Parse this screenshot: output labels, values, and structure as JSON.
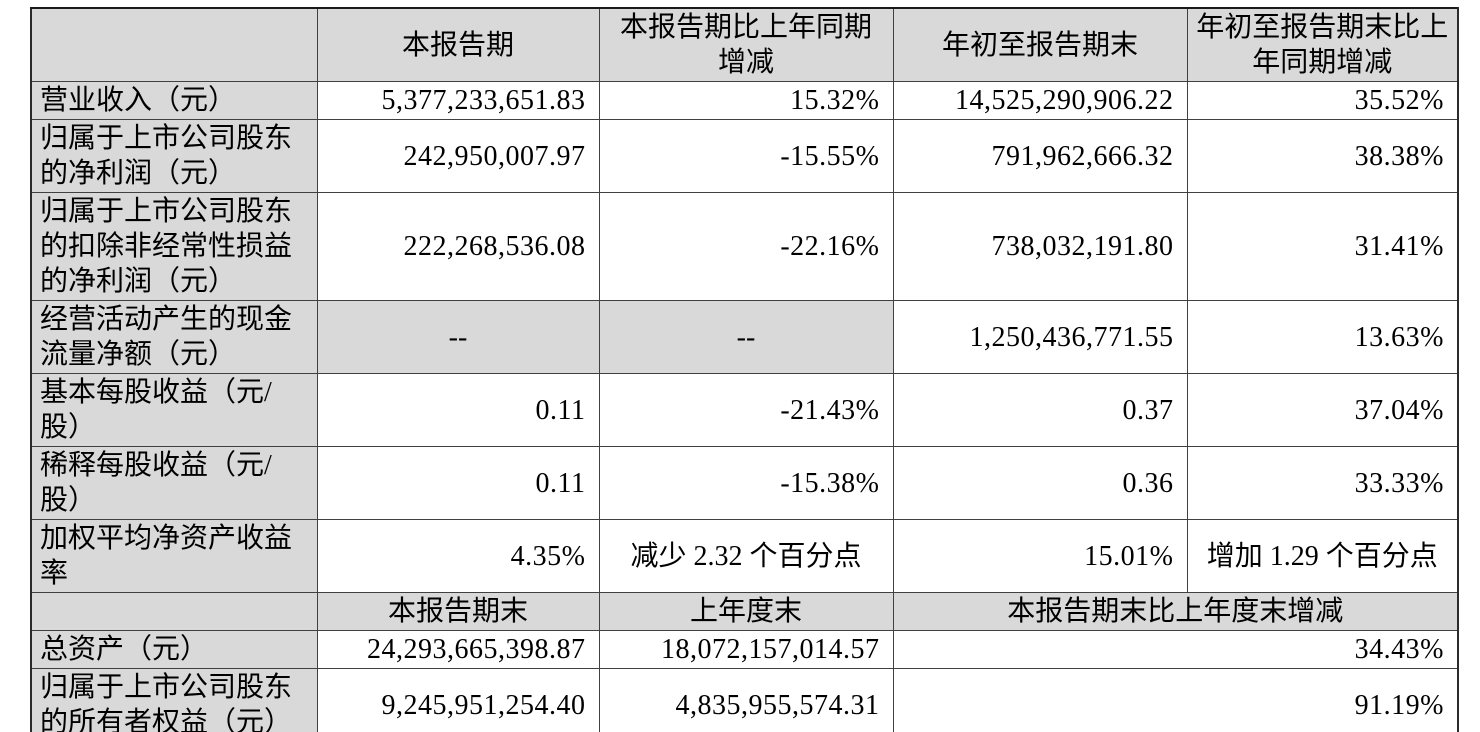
{
  "table": {
    "section1": {
      "header": [
        "",
        "本报告期",
        "本报告期比上年同期增减",
        "年初至报告期末",
        "年初至报告期末比上年同期增减"
      ],
      "rows": [
        {
          "label": "营业收入（元）",
          "cells": [
            "5,377,233,651.83",
            "15.32%",
            "14,525,290,906.22",
            "35.52%"
          ]
        },
        {
          "label": "归属于上市公司股东的净利润（元）",
          "cells": [
            "242,950,007.97",
            "-15.55%",
            "791,962,666.32",
            "38.38%"
          ]
        },
        {
          "label": "归属于上市公司股东的扣除非经常性损益的净利润（元）",
          "cells": [
            "222,268,536.08",
            "-22.16%",
            "738,032,191.80",
            "31.41%"
          ]
        },
        {
          "label": "经营活动产生的现金流量净额（元）",
          "cells": [
            "--",
            "--",
            "1,250,436,771.55",
            "13.63%"
          ]
        },
        {
          "label": "基本每股收益（元/股）",
          "cells": [
            "0.11",
            "-21.43%",
            "0.37",
            "37.04%"
          ]
        },
        {
          "label": "稀释每股收益（元/股）",
          "cells": [
            "0.11",
            "-15.38%",
            "0.36",
            "33.33%"
          ]
        },
        {
          "label": "加权平均净资产收益率",
          "cells": [
            "4.35%",
            "减少 2.32 个百分点",
            "15.01%",
            "增加 1.29 个百分点"
          ]
        }
      ]
    },
    "section2": {
      "header": [
        "",
        "本报告期末",
        "上年度末",
        "本报告期末比上年度末增减"
      ],
      "rows": [
        {
          "label": "总资产（元）",
          "cells": [
            "24,293,665,398.87",
            "18,072,157,014.57",
            "34.43%"
          ]
        },
        {
          "label": "归属于上市公司股东的所有者权益（元）",
          "cells": [
            "9,245,951,254.40",
            "4,835,955,574.31",
            "91.19%"
          ]
        }
      ]
    },
    "colors": {
      "shading_bg": "#d9d9d9",
      "grid_line": "#404040",
      "outer_border": "#000000",
      "text": "#000000"
    }
  }
}
